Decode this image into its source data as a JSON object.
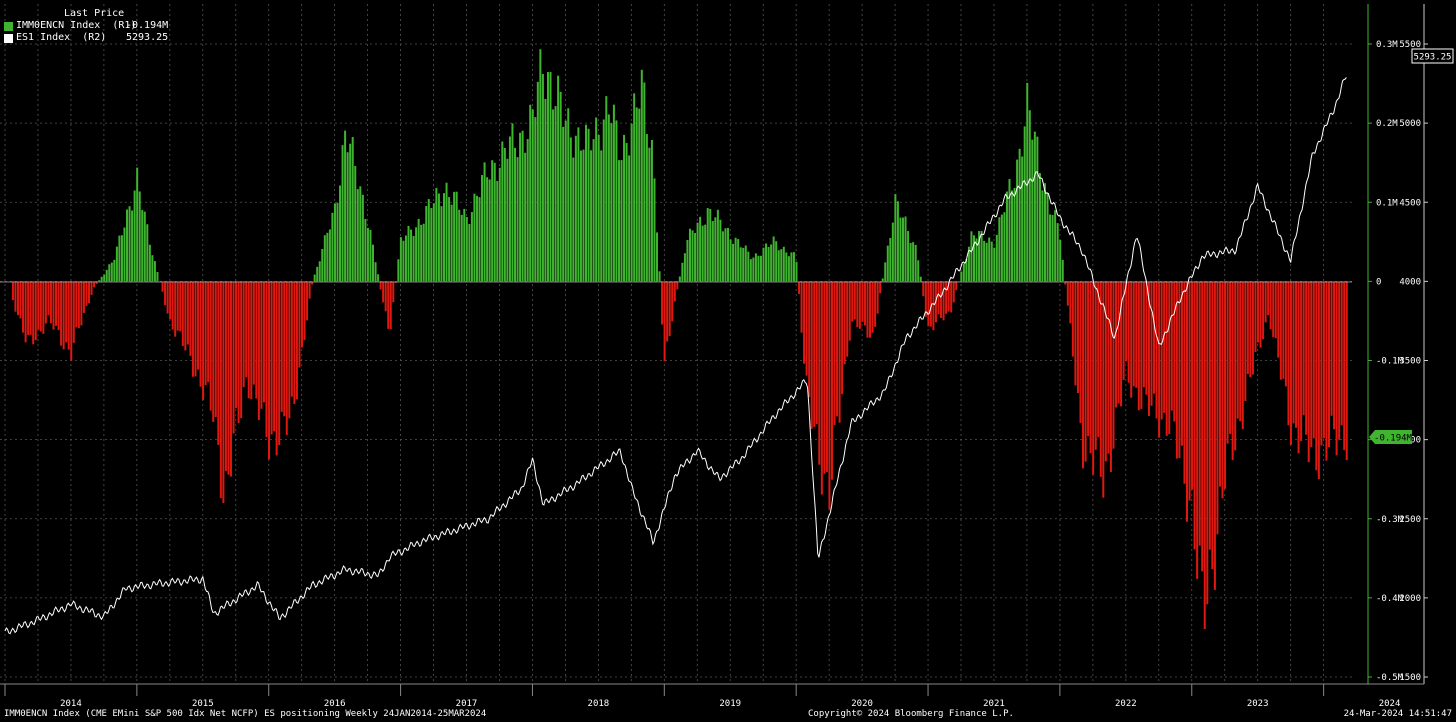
{
  "legend": {
    "header": "Last Price",
    "items": [
      {
        "name": "IMM0ENCN Index  (R1)",
        "value": "-0.194M",
        "color": "#3fb52f"
      },
      {
        "name": "ES1 Index  (R2)",
        "value": "5293.25",
        "color": "#ffffff"
      }
    ]
  },
  "footer": {
    "left": "IMM0ENCN Index (CME EMini S&P 500 Idx Net NCFP) ES positioning  Weekly 24JAN2014-25MAR2024",
    "center": "Copyright© 2024 Bloomberg Finance L.P.",
    "right": "24-Mar-2024 14:51:47"
  },
  "colors": {
    "background": "#000000",
    "positive": "#3fb52f",
    "negative": "#e0180f",
    "price_line": "#ffffff",
    "grid": "#555555"
  },
  "chart_data": {
    "type": "bar",
    "grid": true,
    "x_axis": {
      "ticks": [
        "2014",
        "2015",
        "2016",
        "2017",
        "2018",
        "2019",
        "2020",
        "2021",
        "2022",
        "2023",
        "2024"
      ]
    },
    "axis_r1": {
      "ticks": [
        "0.3M",
        "0.2M",
        "0.1M",
        "0",
        "-0.1M",
        "-0.2M",
        "-0.3M",
        "-0.4M",
        "-0.5M"
      ],
      "range": [
        -0.5,
        0.3
      ]
    },
    "axis_r2": {
      "ticks": [
        "5500",
        "5000",
        "4500",
        "4000",
        "3500",
        "3000",
        "2500",
        "2000",
        "1500"
      ],
      "range": [
        1500,
        5500
      ]
    },
    "last_labels": {
      "r1": "-0.194M",
      "r2": "5293.25"
    },
    "series": [
      {
        "name": "IMM0ENCN Index",
        "type": "bar",
        "unit": "M contracts",
        "points": [
          [
            "2014-01",
            0.01
          ],
          [
            "2014-03",
            -0.08
          ],
          [
            "2014-05",
            -0.05
          ],
          [
            "2014-07",
            -0.09
          ],
          [
            "2014-09",
            -0.01
          ],
          [
            "2014-11",
            0.03
          ],
          [
            "2015-01",
            0.13
          ],
          [
            "2015-02",
            0.06
          ],
          [
            "2015-04",
            -0.05
          ],
          [
            "2015-06",
            -0.1
          ],
          [
            "2015-08",
            -0.17
          ],
          [
            "2015-09",
            -0.27
          ],
          [
            "2015-11",
            -0.12
          ],
          [
            "2016-01",
            -0.2
          ],
          [
            "2016-03",
            -0.18
          ],
          [
            "2016-05",
            0.0
          ],
          [
            "2016-07",
            0.09
          ],
          [
            "2016-08",
            0.19
          ],
          [
            "2016-10",
            0.08
          ],
          [
            "2016-12",
            -0.07
          ],
          [
            "2017-01",
            0.05
          ],
          [
            "2017-03",
            0.08
          ],
          [
            "2017-05",
            0.12
          ],
          [
            "2017-07",
            0.08
          ],
          [
            "2017-09",
            0.14
          ],
          [
            "2017-11",
            0.17
          ],
          [
            "2018-01",
            0.2
          ],
          [
            "2018-02",
            0.28
          ],
          [
            "2018-04",
            0.2
          ],
          [
            "2018-06",
            0.17
          ],
          [
            "2018-08",
            0.22
          ],
          [
            "2018-09",
            0.16
          ],
          [
            "2018-11",
            0.24
          ],
          [
            "2018-12",
            0.16
          ],
          [
            "2019-01",
            -0.1
          ],
          [
            "2019-03",
            0.05
          ],
          [
            "2019-05",
            0.09
          ],
          [
            "2019-07",
            0.06
          ],
          [
            "2019-09",
            0.03
          ],
          [
            "2019-11",
            0.05
          ],
          [
            "2020-01",
            0.03
          ],
          [
            "2020-02",
            -0.15
          ],
          [
            "2020-04",
            -0.27
          ],
          [
            "2020-06",
            -0.05
          ],
          [
            "2020-08",
            -0.07
          ],
          [
            "2020-10",
            0.1
          ],
          [
            "2020-12",
            0.04
          ],
          [
            "2021-01",
            -0.06
          ],
          [
            "2021-03",
            -0.04
          ],
          [
            "2021-05",
            0.06
          ],
          [
            "2021-07",
            0.05
          ],
          [
            "2021-09",
            0.14
          ],
          [
            "2021-10",
            0.22
          ],
          [
            "2021-12",
            0.1
          ],
          [
            "2022-01",
            0.06
          ],
          [
            "2022-03",
            -0.2
          ],
          [
            "2022-05",
            -0.25
          ],
          [
            "2022-07",
            -0.12
          ],
          [
            "2022-09",
            -0.16
          ],
          [
            "2022-11",
            -0.18
          ],
          [
            "2023-01",
            -0.28
          ],
          [
            "2023-02",
            -0.43
          ],
          [
            "2023-04",
            -0.25
          ],
          [
            "2023-06",
            -0.14
          ],
          [
            "2023-08",
            -0.04
          ],
          [
            "2023-10",
            -0.18
          ],
          [
            "2023-12",
            -0.22
          ],
          [
            "2024-03",
            -0.194
          ]
        ]
      },
      {
        "name": "ES1 Index",
        "type": "line",
        "points": [
          [
            "2014-01",
            1780
          ],
          [
            "2014-04",
            1860
          ],
          [
            "2014-07",
            1960
          ],
          [
            "2014-10",
            1880
          ],
          [
            "2014-12",
            2060
          ],
          [
            "2015-03",
            2090
          ],
          [
            "2015-07",
            2120
          ],
          [
            "2015-08",
            1900
          ],
          [
            "2015-12",
            2080
          ],
          [
            "2016-02",
            1870
          ],
          [
            "2016-05",
            2080
          ],
          [
            "2016-08",
            2180
          ],
          [
            "2016-11",
            2140
          ],
          [
            "2016-12",
            2260
          ],
          [
            "2017-03",
            2360
          ],
          [
            "2017-06",
            2430
          ],
          [
            "2017-09",
            2500
          ],
          [
            "2017-12",
            2690
          ],
          [
            "2018-01",
            2870
          ],
          [
            "2018-02",
            2590
          ],
          [
            "2018-05",
            2720
          ],
          [
            "2018-09",
            2930
          ],
          [
            "2018-10",
            2700
          ],
          [
            "2018-12",
            2350
          ],
          [
            "2019-02",
            2780
          ],
          [
            "2019-04",
            2930
          ],
          [
            "2019-06",
            2750
          ],
          [
            "2019-08",
            2880
          ],
          [
            "2019-11",
            3150
          ],
          [
            "2020-02",
            3380
          ],
          [
            "2020-03",
            2240
          ],
          [
            "2020-06",
            3100
          ],
          [
            "2020-09",
            3300
          ],
          [
            "2020-11",
            3640
          ],
          [
            "2021-02",
            3900
          ],
          [
            "2021-05",
            4200
          ],
          [
            "2021-08",
            4520
          ],
          [
            "2021-11",
            4680
          ],
          [
            "2022-01",
            4400
          ],
          [
            "2022-03",
            4200
          ],
          [
            "2022-06",
            3640
          ],
          [
            "2022-08",
            4300
          ],
          [
            "2022-10",
            3580
          ],
          [
            "2022-12",
            3900
          ],
          [
            "2023-02",
            4160
          ],
          [
            "2023-05",
            4200
          ],
          [
            "2023-07",
            4600
          ],
          [
            "2023-10",
            4130
          ],
          [
            "2023-12",
            4800
          ],
          [
            "2024-02",
            5100
          ],
          [
            "2024-03",
            5293.25
          ]
        ]
      }
    ]
  }
}
